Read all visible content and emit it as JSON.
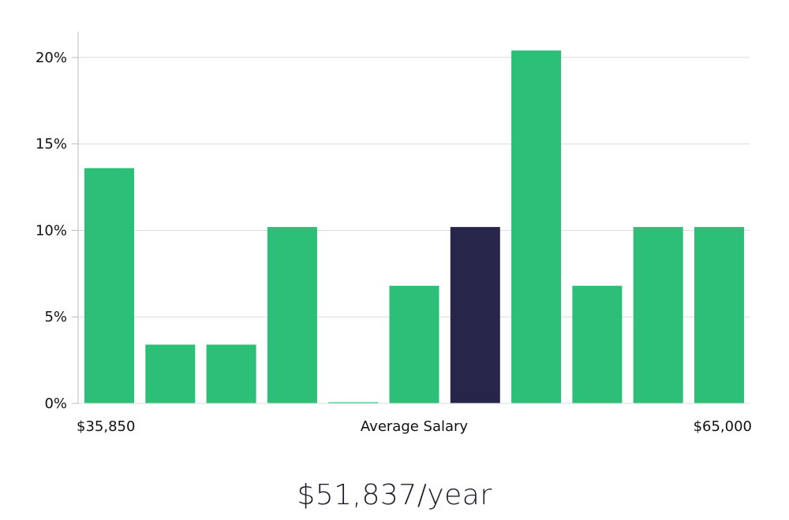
{
  "chart_data": {
    "type": "bar",
    "title": "",
    "xlabel": "Average Salary",
    "ylabel": "",
    "x_min_label": "$35,850",
    "x_max_label": "$65,000",
    "y_ticks": [
      "0%",
      "5%",
      "10%",
      "15%",
      "20%"
    ],
    "y_tick_values": [
      0,
      5,
      10,
      15,
      20
    ],
    "ylim": [
      0,
      21.5
    ],
    "values": [
      13.6,
      3.4,
      3.4,
      10.2,
      0,
      6.8,
      10.2,
      20.4,
      6.8,
      10.2,
      10.2
    ],
    "highlight_index": 6,
    "grid": true
  },
  "colors": {
    "bar": "#2bbf78",
    "highlight": "#28254a",
    "grid": "#dcdcdc",
    "axis": "#bbbbbb"
  },
  "summary": {
    "average_salary": "$51,837/year"
  }
}
